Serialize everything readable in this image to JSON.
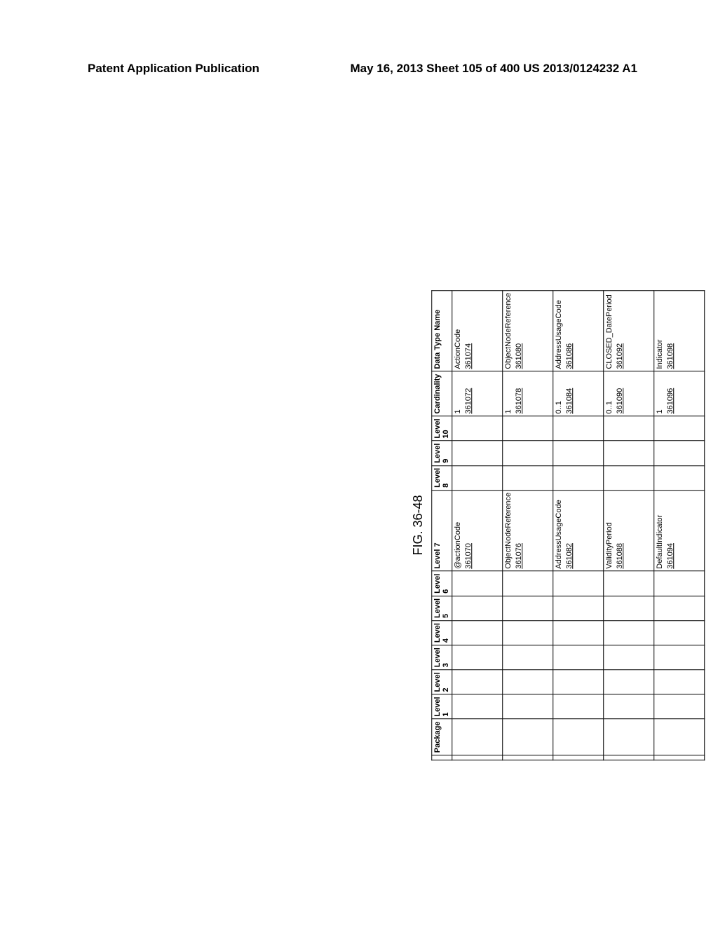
{
  "header": {
    "left": "Patent Application Publication",
    "right": "May 16, 2013  Sheet 105 of 400   US 2013/0124232 A1"
  },
  "figure_label": "FIG. 36-48",
  "table": {
    "columns": [
      "Package",
      "Level 1",
      "Level 2",
      "Level 3",
      "Level 4",
      "Level 5",
      "Level 6",
      "Level 7",
      "Level 8",
      "Level 9",
      "Level 10",
      "Cardinality",
      "Data Type Name"
    ],
    "rows": [
      {
        "l7_text": "@actionCode",
        "l7_ref": "361070",
        "card_text": "1",
        "card_ref": "361072",
        "dtype_text": "ActionCode",
        "dtype_ref": "361074"
      },
      {
        "l7_text": "ObjectNodeReference",
        "l7_ref": "361076",
        "card_text": "1",
        "card_ref": "361078",
        "dtype_text": "ObjectNodeReference",
        "dtype_ref": "361080"
      },
      {
        "l7_text": "AddressUsageCode",
        "l7_ref": "361082",
        "card_text": "0..1",
        "card_ref": "361084",
        "dtype_text": "AddressUsageCode",
        "dtype_ref": "361086"
      },
      {
        "l7_text": "ValidityPeriod",
        "l7_ref": "361088",
        "card_text": "0..1",
        "card_ref": "361090",
        "dtype_text": "CLOSED_DatePeriod",
        "dtype_ref": "361092"
      },
      {
        "l7_text": "DefaultIndicator",
        "l7_ref": "361094",
        "card_text": "1",
        "card_ref": "361096",
        "dtype_text": "Indicator",
        "dtype_ref": "361098"
      }
    ]
  }
}
